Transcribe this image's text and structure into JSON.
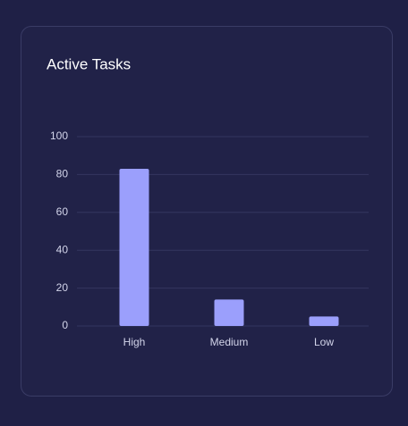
{
  "chart_data": {
    "type": "bar",
    "title": "Active Tasks",
    "categories": [
      "High",
      "Medium",
      "Low"
    ],
    "values": [
      83,
      14,
      5
    ],
    "color": "#9b9ffc",
    "ylim": [
      0,
      100
    ],
    "yticks": [
      0,
      20,
      40,
      60,
      80,
      100
    ],
    "grid": true
  }
}
